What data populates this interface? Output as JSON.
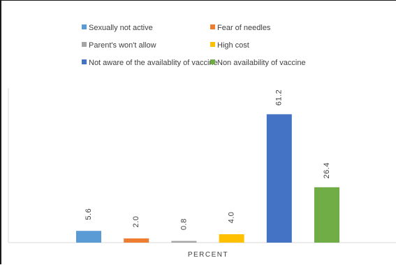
{
  "chart_data": {
    "type": "bar",
    "xlabel": "PERCENT",
    "ylim": [
      0,
      70
    ],
    "grid": false,
    "legend_position": "top",
    "series": [
      {
        "name": "Sexually not active",
        "value": 5.6,
        "label": "5.6",
        "color": "#5b9bd5"
      },
      {
        "name": "Fear of needles",
        "value": 2.0,
        "label": "2.0",
        "color": "#ed7d31"
      },
      {
        "name": "Parent's won't allow",
        "value": 0.8,
        "label": "0.8",
        "color": "#a5a5a5"
      },
      {
        "name": "High cost",
        "value": 4.0,
        "label": "4.0",
        "color": "#ffc000"
      },
      {
        "name": "Not aware of the availablity of vaccine",
        "value": 61.2,
        "label": "61.2",
        "color": "#4472c4"
      },
      {
        "name": "Non availability of vaccine",
        "value": 26.4,
        "label": "26.4",
        "color": "#70ad47"
      }
    ]
  }
}
